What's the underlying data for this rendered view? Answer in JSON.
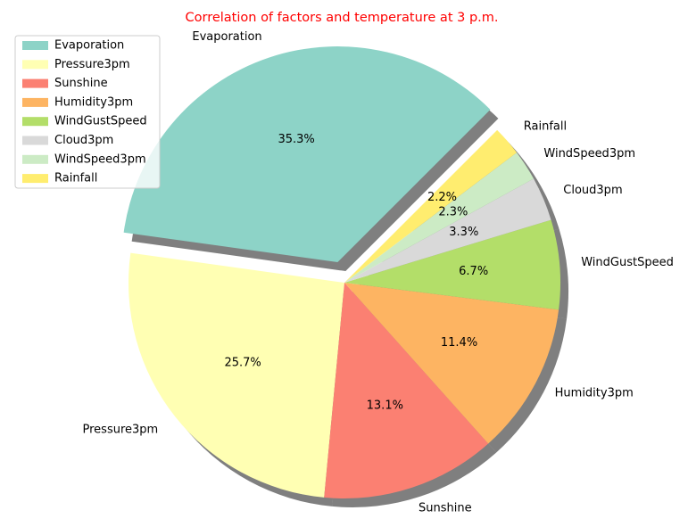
{
  "chart_data": {
    "type": "pie",
    "title": "Correlation of factors and temperature at 3 p.m.",
    "title_color": "#ff0000",
    "labels": [
      "Evaporation",
      "Pressure3pm",
      "Sunshine",
      "Humidity3pm",
      "WindGustSpeed",
      "Cloud3pm",
      "WindSpeed3pm",
      "Rainfall"
    ],
    "values": [
      35.3,
      25.7,
      13.1,
      11.4,
      6.7,
      3.3,
      2.3,
      2.2
    ],
    "percent_labels": [
      "35.3%",
      "25.7%",
      "13.1%",
      "11.4%",
      "6.7%",
      "3.3%",
      "2.3%",
      "2.2%"
    ],
    "colors": [
      "#8dd3c7",
      "#ffffb3",
      "#fb8072",
      "#fdb462",
      "#b3de69",
      "#d9d9d9",
      "#ccebc5",
      "#ffed6f"
    ],
    "exploded": [
      "Evaporation"
    ],
    "start_angle_deg": 45,
    "direction": "counterclockwise",
    "shadow": true,
    "legend": {
      "position": "top-left",
      "entries": [
        "Evaporation",
        "Pressure3pm",
        "Sunshine",
        "Humidity3pm",
        "WindGustSpeed",
        "Cloud3pm",
        "WindSpeed3pm",
        "Rainfall"
      ]
    }
  }
}
